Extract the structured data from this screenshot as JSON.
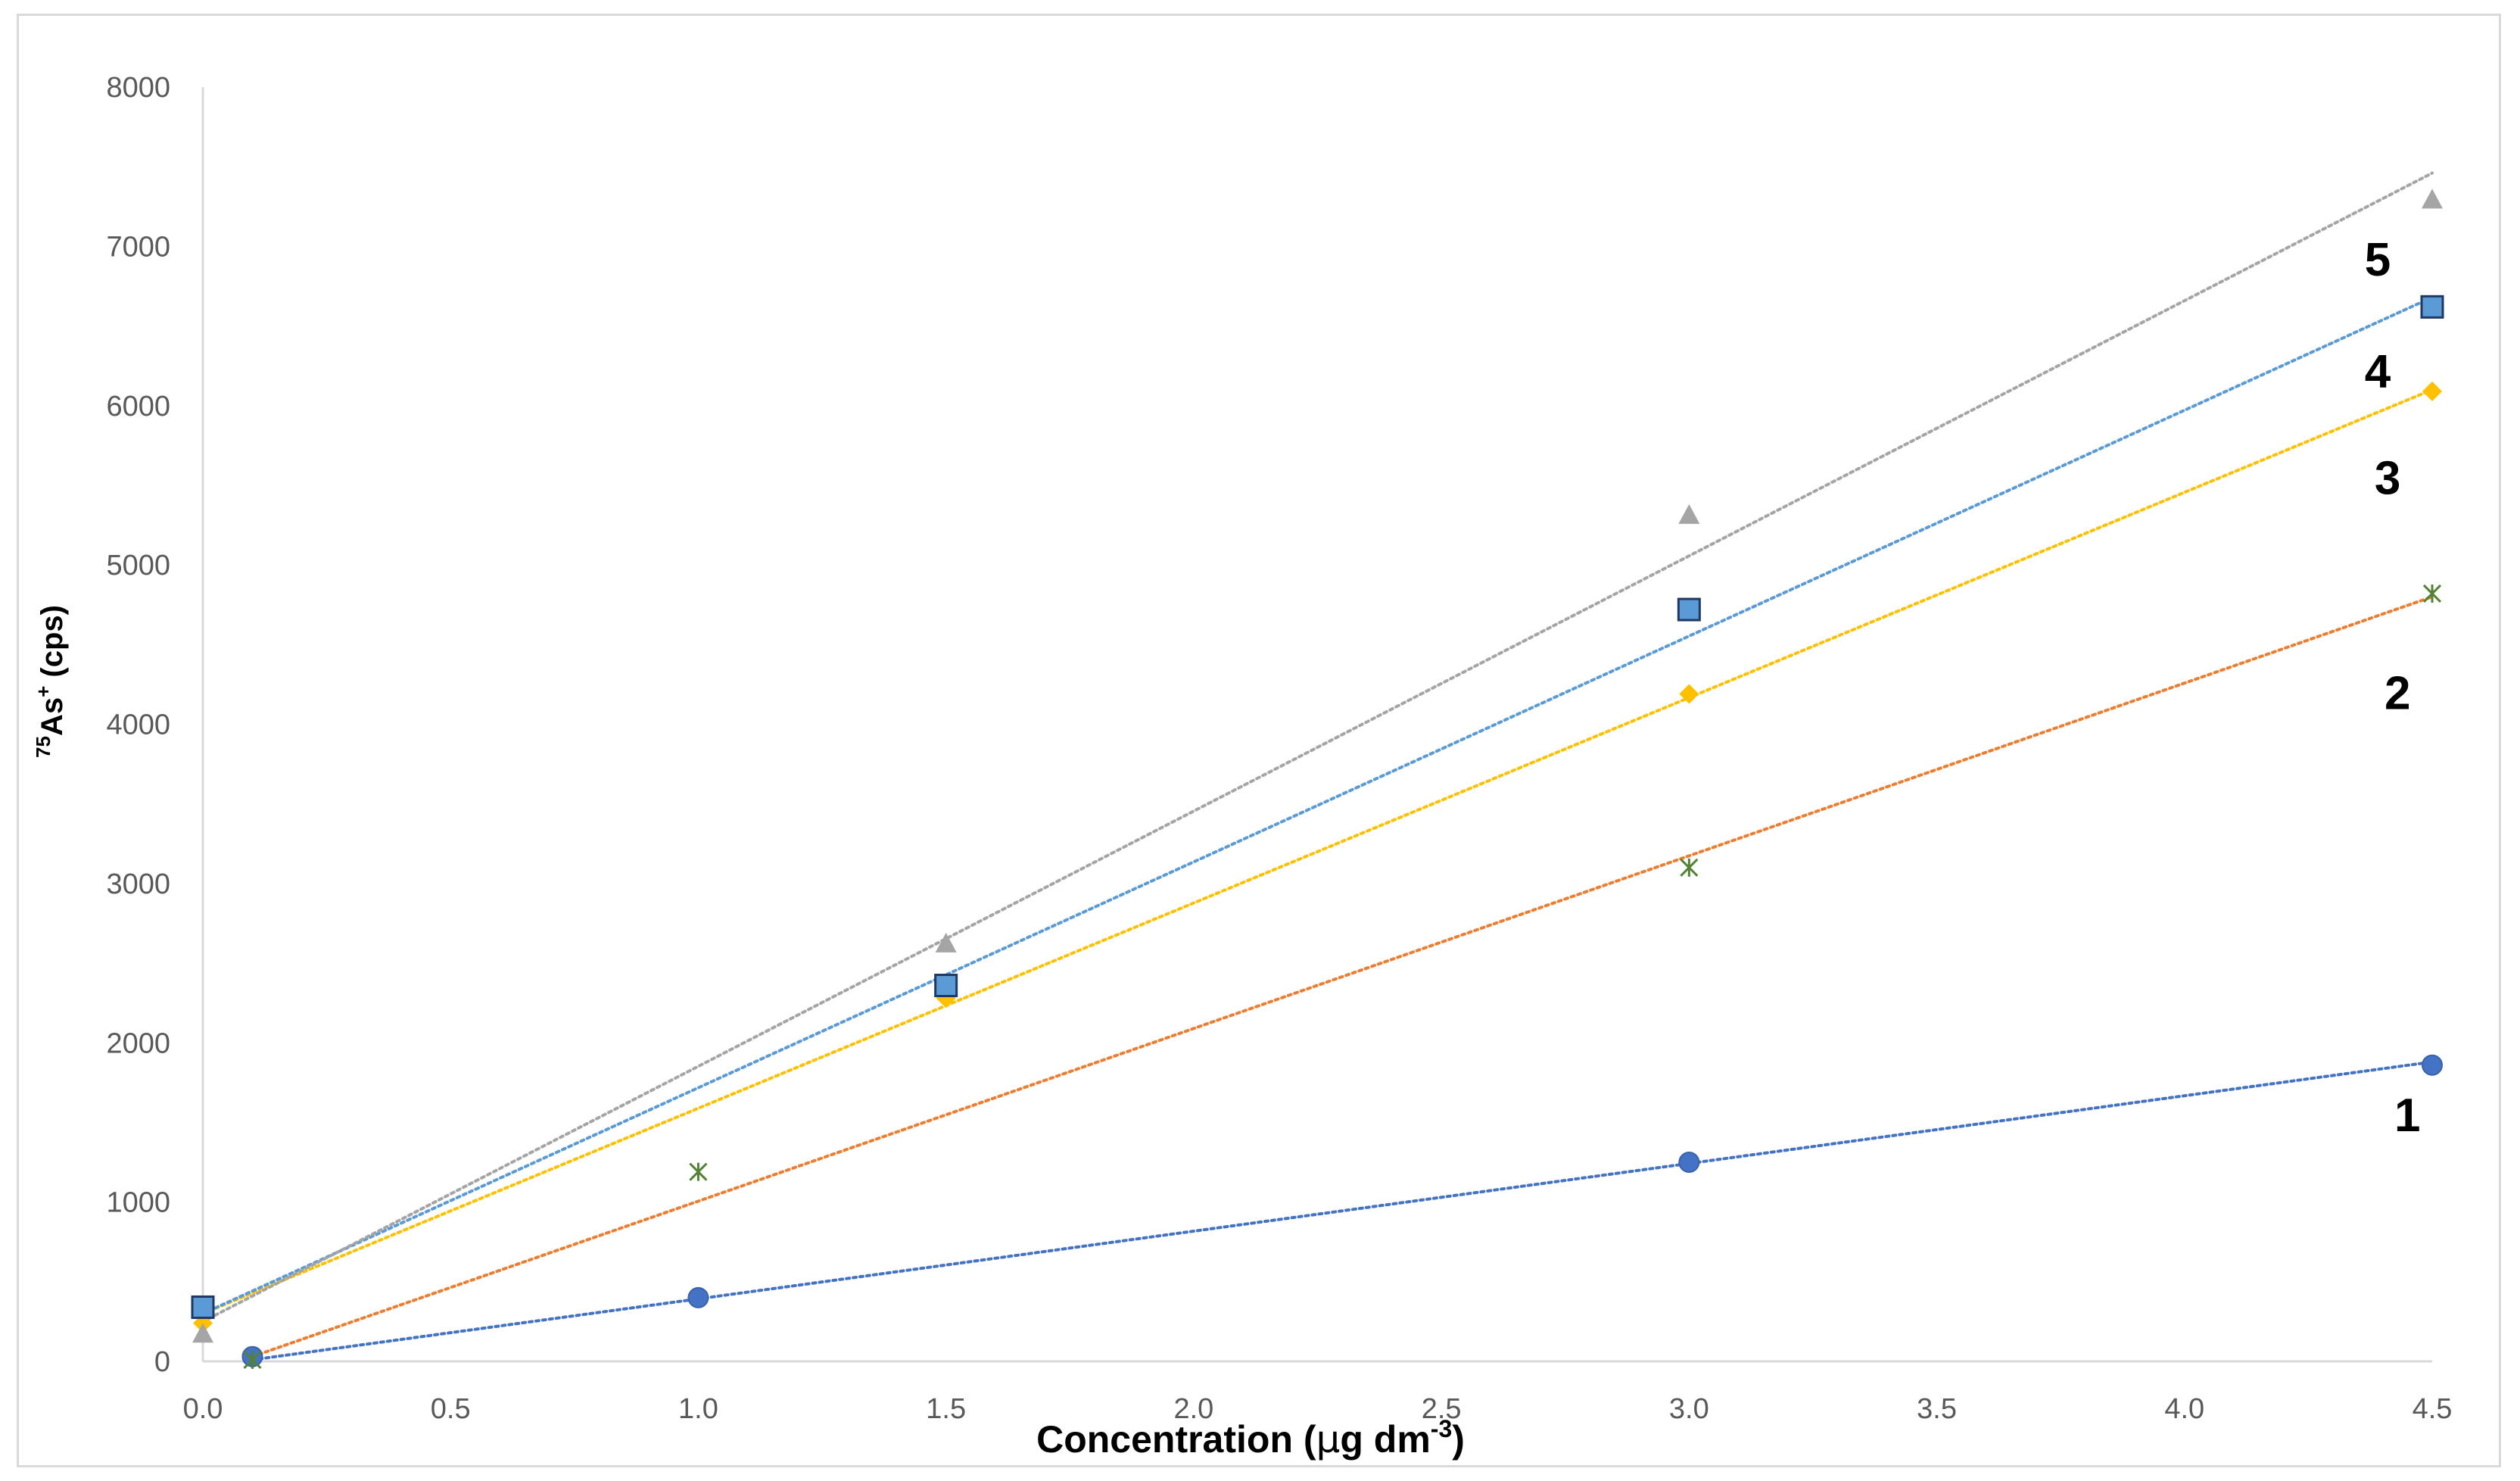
{
  "chart_data": {
    "type": "scatter",
    "title": "",
    "xlabel": "Concentration (μg dm-3)",
    "xlabel_parts": {
      "main": "Concentration (",
      "mu": "μ",
      "g": "g dm",
      "sup": "-3",
      "close": ")"
    },
    "ylabel": "75As+ (cps)",
    "ylabel_parts": {
      "sup1": "75",
      "main": "As",
      "sup2": "+",
      "unit": " (cps)"
    },
    "xlim": [
      0,
      4.5
    ],
    "ylim": [
      0,
      8000
    ],
    "x_ticks": [
      "0.0",
      "0.5",
      "1.0",
      "1.5",
      "2.0",
      "2.5",
      "3.0",
      "3.5",
      "4.0",
      "4.5"
    ],
    "y_ticks": [
      "0",
      "1000",
      "2000",
      "3000",
      "4000",
      "5000",
      "6000",
      "7000",
      "8000"
    ],
    "grid": false,
    "trendlines": "linear, dotted",
    "series": [
      {
        "name": "1",
        "marker": "circle",
        "color": "#4472C4",
        "points": [
          [
            0.1,
            30
          ],
          [
            1.0,
            400
          ],
          [
            3.0,
            1250
          ],
          [
            4.5,
            1860
          ]
        ],
        "trend": [
          [
            0.1,
            10
          ],
          [
            4.5,
            1880
          ]
        ],
        "label_at": [
          4.45,
          1550
        ]
      },
      {
        "name": "2",
        "marker": "x",
        "color": "#548235",
        "trend_color": "#ED7D31",
        "points": [
          [
            0.1,
            10
          ],
          [
            1.0,
            1190
          ],
          [
            3.0,
            3100
          ],
          [
            4.5,
            4820
          ]
        ],
        "trend": [
          [
            0.1,
            30
          ],
          [
            4.5,
            4800
          ]
        ],
        "label_at": [
          4.43,
          4200
        ]
      },
      {
        "name": "3",
        "marker": "diamond",
        "color": "#FFC000",
        "points": [
          [
            0.0,
            240
          ],
          [
            1.5,
            2280
          ],
          [
            3.0,
            4190
          ],
          [
            4.5,
            6090
          ]
        ],
        "trend": [
          [
            0.0,
            300
          ],
          [
            4.5,
            6100
          ]
        ],
        "label_at": [
          4.41,
          5550
        ]
      },
      {
        "name": "4",
        "marker": "square",
        "color": "#5B9BD5",
        "points": [
          [
            0.0,
            340
          ],
          [
            1.5,
            2360
          ],
          [
            3.0,
            4720
          ],
          [
            4.5,
            6620
          ]
        ],
        "trend": [
          [
            0.0,
            300
          ],
          [
            4.5,
            6680
          ]
        ],
        "label_at": [
          4.39,
          6220
        ]
      },
      {
        "name": "5",
        "marker": "triangle",
        "color": "#A5A5A5",
        "points": [
          [
            0.0,
            170
          ],
          [
            1.5,
            2620
          ],
          [
            3.0,
            5310
          ],
          [
            4.5,
            7290
          ]
        ],
        "trend": [
          [
            0.0,
            250
          ],
          [
            4.5,
            7460
          ]
        ],
        "label_at": [
          4.39,
          6920
        ]
      }
    ]
  }
}
